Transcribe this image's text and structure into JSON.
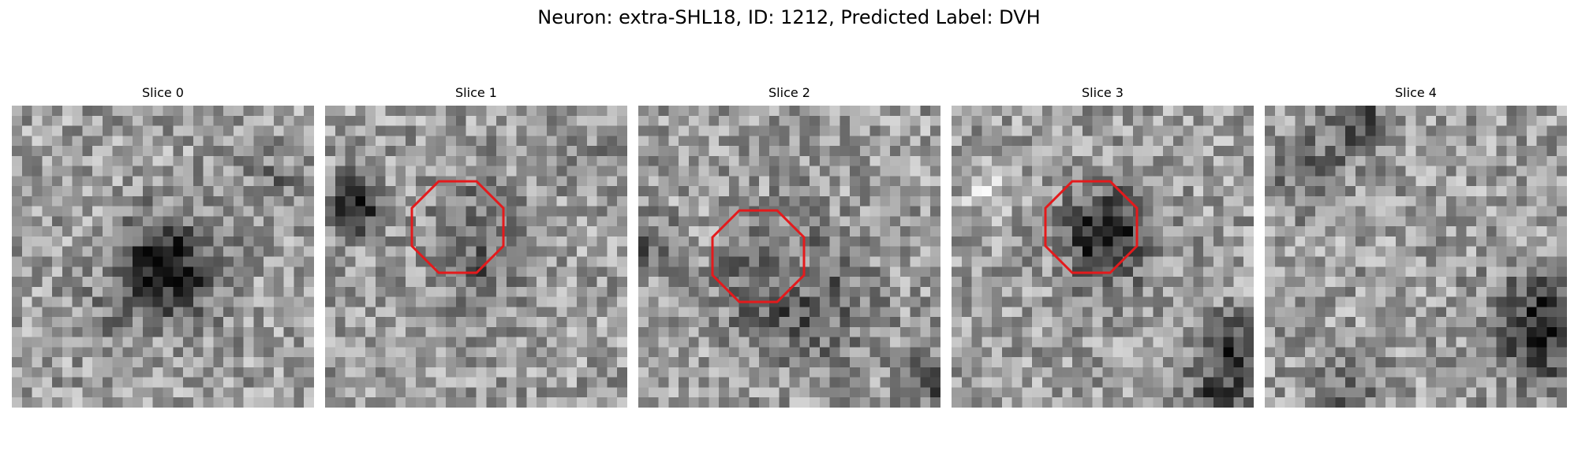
{
  "figure": {
    "title": "Neuron: extra-SHL18, ID: 1212, Predicted Label: DVH"
  },
  "panels": [
    {
      "title": "Slice 0",
      "has_roi": false
    },
    {
      "title": "Slice 1",
      "has_roi": true
    },
    {
      "title": "Slice 2",
      "has_roi": true
    },
    {
      "title": "Slice 3",
      "has_roi": true
    },
    {
      "title": "Slice 4",
      "has_roi": false
    }
  ],
  "roi_color": "#e41a1c",
  "colormap": "gray"
}
